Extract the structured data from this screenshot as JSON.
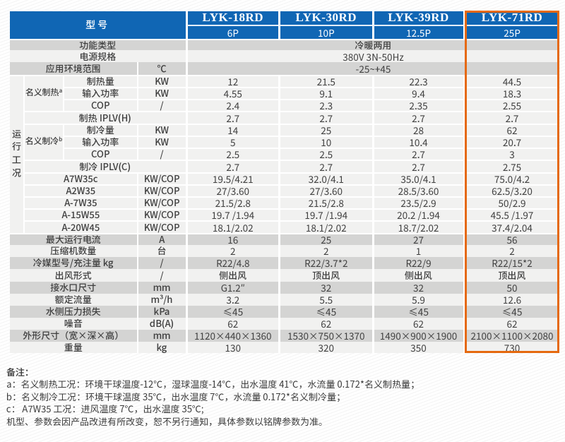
{
  "colors": {
    "blue": "#1066b4",
    "header_sep": "#e4eefa",
    "orange": "#e5690e",
    "row_dark": "#d4d4d3",
    "row_light": "#f1f1f0",
    "separator": "#ffffff",
    "text": "#3f3f3f",
    "header_text": "#ffffff"
  },
  "header": {
    "model_label": "型号",
    "models": [
      {
        "name": "LYK-18RD",
        "hp": "6P",
        "highlighted": false
      },
      {
        "name": "LYK-30RD",
        "hp": "10P",
        "highlighted": false
      },
      {
        "name": "LYK-39RD",
        "hp": "12.5P",
        "highlighted": false
      },
      {
        "name": "LYK-71RD",
        "hp": "25P",
        "highlighted": true
      }
    ]
  },
  "top_rows": [
    {
      "label": "功能类型",
      "value": "冷暖两用",
      "shade": "dark"
    },
    {
      "label": "电源规格",
      "value": "380V 3N-50Hz",
      "shade": "light"
    },
    {
      "label": "应用环境范围",
      "unit": "℃",
      "value": "-25~+45",
      "shade": "dark"
    }
  ],
  "mid_section": {
    "side_label": "运行工况",
    "rows": [
      {
        "kind": "group-first",
        "group": "名义制热",
        "group_sup": "a",
        "label": "制热量",
        "unit": "KW",
        "values": [
          "12",
          "21.5",
          "22.3",
          "44.5"
        ]
      },
      {
        "kind": "group",
        "label": "输入功率",
        "unit": "KW",
        "values": [
          "4.55",
          "9.1",
          "9.4",
          "18.3"
        ]
      },
      {
        "kind": "group",
        "label": "COP",
        "unit": "/",
        "values": [
          "2.4",
          "2.3",
          "2.35",
          "2.55"
        ]
      },
      {
        "kind": "wide",
        "label": "制热 IPLV(H)",
        "values": [
          "2.7",
          "2.7",
          "2.7",
          "2.7"
        ]
      },
      {
        "kind": "group-first",
        "group": "名义制冷",
        "group_sup": "b",
        "label": "制冷量",
        "unit": "KW",
        "values": [
          "14",
          "25",
          "28",
          "62"
        ]
      },
      {
        "kind": "group",
        "label": "输入功率",
        "unit": "KW",
        "values": [
          "5",
          "10",
          "10.4",
          "20.7"
        ]
      },
      {
        "kind": "group",
        "label": "COP",
        "unit": "/",
        "values": [
          "2.5",
          "2.5",
          "2.7",
          "3"
        ]
      },
      {
        "kind": "wide",
        "label": "制冷 IPLV(C)",
        "values": [
          "2.7",
          "2.7",
          "2.7",
          "2.75"
        ]
      },
      {
        "kind": "half",
        "label": "A7W35c",
        "unit": "KW/COP",
        "values": [
          "19.5/4.21",
          "32.0/4.1",
          "35.0/4.1",
          "75.0/4.2"
        ]
      },
      {
        "kind": "half",
        "label": "A2W35",
        "unit": "KW/COP",
        "values": [
          "27/3.60",
          "27/3.60",
          "28.5/3.60",
          "62.5/3.20"
        ]
      },
      {
        "kind": "half",
        "label": "A-7W35",
        "unit": "KW/COP",
        "values": [
          "21.5/2.8",
          "21.5/2.8",
          "23.5/2.9",
          "50/2.9"
        ]
      },
      {
        "kind": "half",
        "label": "A-15W55",
        "unit": "KW/COP",
        "values": [
          "19.7 /1.94",
          "19.7 /1.94",
          "20.2 /1.94",
          "45.5 /1.97"
        ]
      },
      {
        "kind": "half",
        "label": "A-20W45",
        "unit": "KW/COP",
        "values": [
          "18.1/2.02",
          "18.1/2.02",
          "18.7/2.02",
          "37.4/2.04"
        ]
      }
    ]
  },
  "bottom_rows": [
    {
      "label": "最大运行电流",
      "unit": "A",
      "values": [
        "16",
        "25",
        "27",
        "56"
      ],
      "shade": "dark"
    },
    {
      "label": "压缩机数量",
      "unit": "台",
      "values": [
        "2",
        "2",
        "1",
        "2"
      ],
      "shade": "light"
    },
    {
      "label": "冷媒型号/充注量 kg",
      "unit": "/",
      "values": [
        "R22/4.8",
        "R22/3.7*2",
        "R22/9",
        "R22/15*2"
      ],
      "shade": "dark"
    },
    {
      "label": "出风形式",
      "unit": "/",
      "values": [
        "侧出风",
        "顶出风",
        "侧出风",
        "顶出风"
      ],
      "shade": "light"
    },
    {
      "label": "接水口尺寸",
      "unit": "mm",
      "values": [
        "G1.2″",
        "32",
        "32",
        "50"
      ],
      "shade": "dark"
    },
    {
      "label": "额定流量",
      "unit": "m³/h",
      "values": [
        "3.2",
        "5.5",
        "5.9",
        "12.6"
      ],
      "shade": "light"
    },
    {
      "label": "水侧压力损失",
      "unit": "kPa",
      "values": [
        "≤45",
        "≤45",
        "≤45",
        "≤45"
      ],
      "shade": "dark"
    },
    {
      "label": "噪音",
      "unit": "dB(A)",
      "values": [
        "62",
        "62",
        "62",
        "62"
      ],
      "shade": "light"
    },
    {
      "label": "外形尺寸（宽×深×高）",
      "unit": "mm",
      "values": [
        "1120×440×1360",
        "1530×750×1370",
        "1490×900×1900",
        "2100×1100×2080"
      ],
      "shade": "dark"
    },
    {
      "label": "重量",
      "unit": "kg",
      "values": [
        "130",
        "320",
        "350",
        "730"
      ],
      "shade": "light"
    }
  ],
  "footnotes": {
    "title": "备注：",
    "lines": [
      "a：名义制热工况：环境干球温度-12℃，湿球温度-14℃，出水温度 41℃，水流量 0.172*名义制热量；",
      "b：名义制冷工况：环境干球温度 35℃，出水温度 7℃，水流量 0.172*名义制冷量；",
      "c： A7W35 工况：进风温度 7℃，出水温度 35℃;",
      "机型、参数会因产品改进有所改变，恕不另行通知，具体参数以铭牌参数为准。"
    ]
  }
}
